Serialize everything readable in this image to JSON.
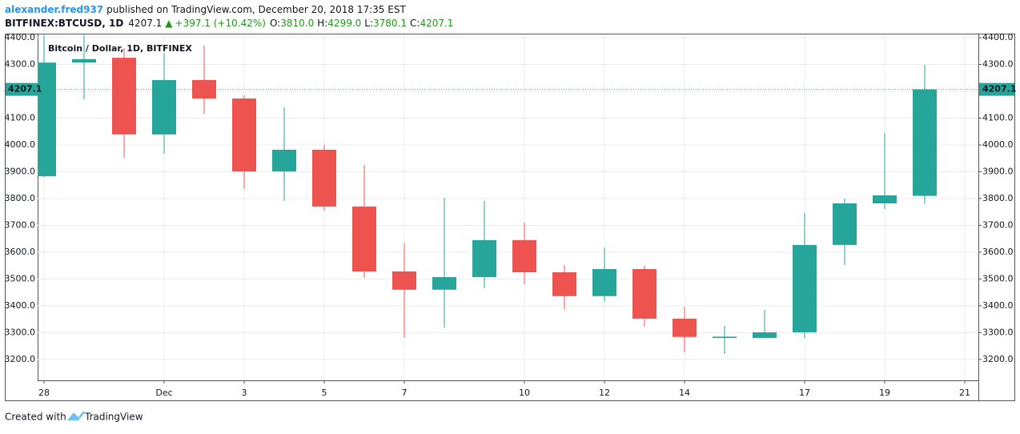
{
  "header": {
    "author": "alexander.fred937",
    "published": "published on TradingView.com, December 20, 2018 17:35 EST",
    "symbol": "BITFINEX:BTCUSD, 1D",
    "last": "4207.1",
    "change": "+397.1 (+10.42%)",
    "open_label": "O:",
    "open": "3810.0",
    "high_label": "H:",
    "high": "4299.0",
    "low_label": "L:",
    "low": "3780.1",
    "close_label": "C:",
    "close": "4207.1"
  },
  "footer": {
    "text": "Created with",
    "brand": "TradingView"
  },
  "chart_data": {
    "type": "candlestick",
    "title": "Bitcoin / Dollar, 1D, BITFINEX",
    "categories": [
      "28",
      null,
      null,
      "Dec",
      null,
      "3",
      null,
      "5",
      null,
      "7",
      null,
      null,
      "10",
      null,
      "12",
      null,
      "14",
      null,
      null,
      "17",
      null,
      "19",
      null,
      "21"
    ],
    "open": [
      3883,
      4307,
      4325,
      4039,
      4242,
      4173,
      3901,
      3982,
      3770,
      3528,
      3460,
      3507,
      3645,
      3525,
      3436,
      3537,
      3352,
      3280,
      3280,
      3301,
      3627,
      3782,
      3810,
      null
    ],
    "high": [
      4410,
      4410,
      4361,
      4343,
      4370,
      4185,
      4140,
      4000,
      3925,
      3633,
      3803,
      3791,
      3710,
      3552,
      3618,
      3550,
      3397,
      3325,
      3385,
      3746,
      3800,
      4045,
      4299,
      null
    ],
    "low": [
      3880,
      4170,
      3952,
      3967,
      4116,
      3836,
      3791,
      3755,
      3504,
      3281,
      3319,
      3466,
      3481,
      3385,
      3415,
      3322,
      3227,
      3221,
      3280,
      3280,
      3552,
      3761,
      3780.1,
      null
    ],
    "close": [
      4307,
      4320,
      4039,
      4242,
      4173,
      3901,
      3982,
      3770,
      3528,
      3460,
      3507,
      3645,
      3525,
      3436,
      3537,
      3352,
      3284,
      3285,
      3301,
      3627,
      3782,
      3812,
      4207.1,
      null
    ],
    "up_color": "#26a69a",
    "down_color": "#ef5350",
    "ylim": [
      3122,
      4409
    ],
    "yticks": [
      {
        "value": 3200,
        "label": "3200.0"
      },
      {
        "value": 3300,
        "label": "3300.0"
      },
      {
        "value": 3400,
        "label": "3400.0"
      },
      {
        "value": 3500,
        "label": "3500.0"
      },
      {
        "value": 3600,
        "label": "3600.0"
      },
      {
        "value": 3700,
        "label": "3700.0"
      },
      {
        "value": 3800,
        "label": "3800.0"
      },
      {
        "value": 3900,
        "label": "3900.0"
      },
      {
        "value": 4000,
        "label": "4000.0"
      },
      {
        "value": 4100,
        "label": "4100.0"
      },
      {
        "value": 4200,
        "label": "4200.0"
      },
      {
        "value": 4300,
        "label": "4300.0"
      },
      {
        "value": 4400,
        "label": "4400.0"
      }
    ],
    "last_price": 4207.1,
    "grid": true
  }
}
